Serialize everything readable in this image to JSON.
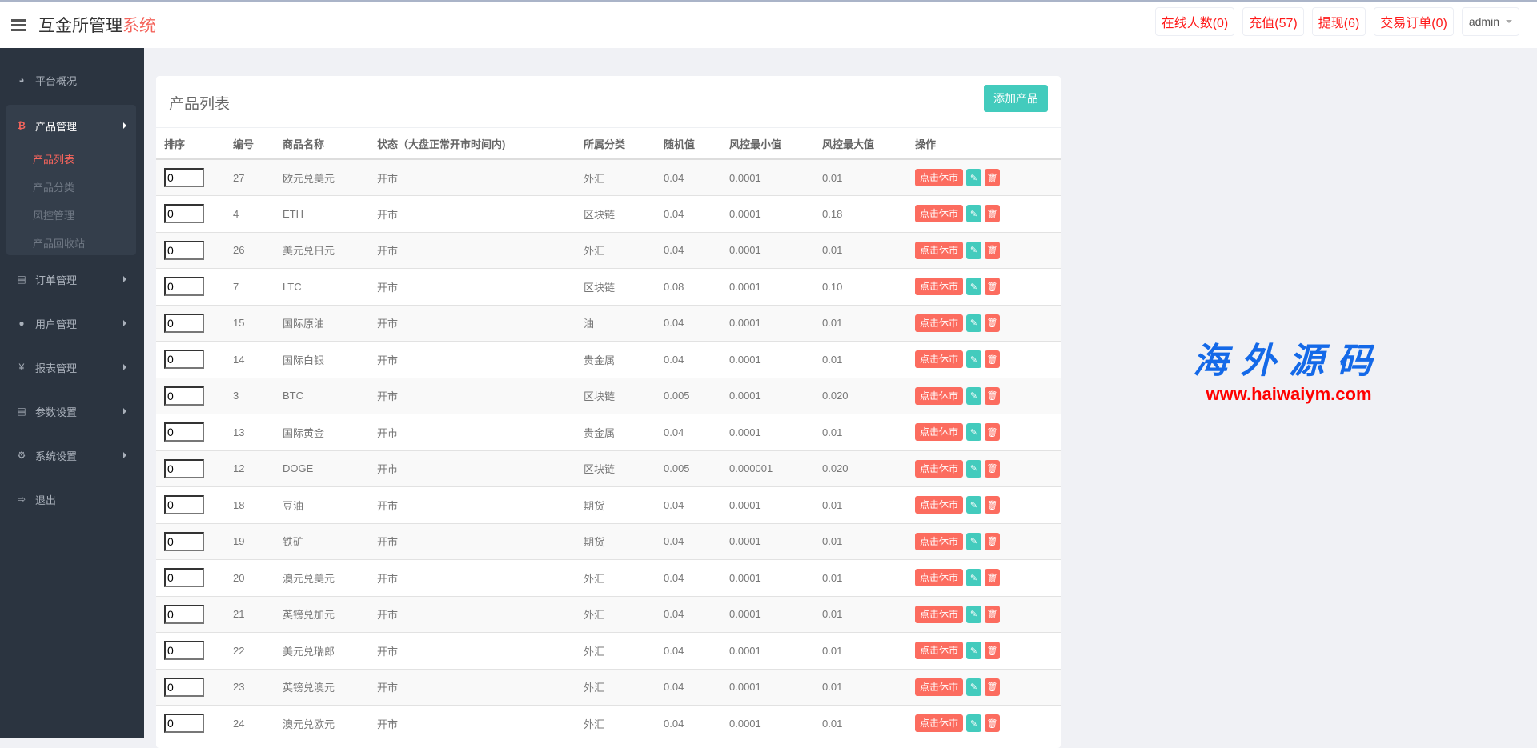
{
  "header": {
    "title_main": "互金所管理",
    "title_accent": "系统",
    "buttons": [
      "在线人数(0)",
      "充值(57)",
      "提现(6)",
      "交易订单(0)"
    ],
    "user": "admin"
  },
  "sidebar": {
    "items": [
      {
        "label": "平台概况",
        "icon": "dashboard-icon"
      },
      {
        "label": "产品管理",
        "icon": "bitcoin-icon",
        "expanded": true,
        "children": [
          "产品列表",
          "产品分类",
          "风控管理",
          "产品回收站"
        ],
        "active_child": "产品列表"
      },
      {
        "label": "订单管理",
        "icon": "files-icon"
      },
      {
        "label": "用户管理",
        "icon": "user-icon"
      },
      {
        "label": "报表管理",
        "icon": "yen-icon"
      },
      {
        "label": "参数设置",
        "icon": "files-icon"
      },
      {
        "label": "系统设置",
        "icon": "gears-icon"
      },
      {
        "label": "退出",
        "icon": "sign-out-icon"
      }
    ]
  },
  "main": {
    "title": "产品列表",
    "add_label": "添加产品",
    "columns": [
      "排序",
      "编号",
      "商品名称",
      "状态（大盘正常开市时间内)",
      "所属分类",
      "随机值",
      "风控最小值",
      "风控最大值",
      "操作"
    ],
    "action_label": "点击休市",
    "rows": [
      [
        "0",
        "27",
        "欧元兑美元",
        "开市",
        "外汇",
        "0.04",
        "0.0001",
        "0.01"
      ],
      [
        "0",
        "4",
        "ETH",
        "开市",
        "区块链",
        "0.04",
        "0.0001",
        "0.18"
      ],
      [
        "0",
        "26",
        "美元兑日元",
        "开市",
        "外汇",
        "0.04",
        "0.0001",
        "0.01"
      ],
      [
        "0",
        "7",
        "LTC",
        "开市",
        "区块链",
        "0.08",
        "0.0001",
        "0.10"
      ],
      [
        "0",
        "15",
        "国际原油",
        "开市",
        "油",
        "0.04",
        "0.0001",
        "0.01"
      ],
      [
        "0",
        "14",
        "国际白银",
        "开市",
        "贵金属",
        "0.04",
        "0.0001",
        "0.01"
      ],
      [
        "0",
        "3",
        "BTC",
        "开市",
        "区块链",
        "0.005",
        "0.0001",
        "0.020"
      ],
      [
        "0",
        "13",
        "国际黄金",
        "开市",
        "贵金属",
        "0.04",
        "0.0001",
        "0.01"
      ],
      [
        "0",
        "12",
        "DOGE",
        "开市",
        "区块链",
        "0.005",
        "0.000001",
        "0.020"
      ],
      [
        "0",
        "18",
        "豆油",
        "开市",
        "期货",
        "0.04",
        "0.0001",
        "0.01"
      ],
      [
        "0",
        "19",
        "铁矿",
        "开市",
        "期货",
        "0.04",
        "0.0001",
        "0.01"
      ],
      [
        "0",
        "20",
        "澳元兑美元",
        "开市",
        "外汇",
        "0.04",
        "0.0001",
        "0.01"
      ],
      [
        "0",
        "21",
        "英镑兑加元",
        "开市",
        "外汇",
        "0.04",
        "0.0001",
        "0.01"
      ],
      [
        "0",
        "22",
        "美元兑瑞郎",
        "开市",
        "外汇",
        "0.04",
        "0.0001",
        "0.01"
      ],
      [
        "0",
        "23",
        "英镑兑澳元",
        "开市",
        "外汇",
        "0.04",
        "0.0001",
        "0.01"
      ],
      [
        "0",
        "24",
        "澳元兑欧元",
        "开市",
        "外汇",
        "0.04",
        "0.0001",
        "0.01"
      ]
    ]
  },
  "watermark": {
    "cn": "海外源码",
    "url": "www.haiwaiym.com"
  },
  "colors": {
    "accent": "#f4645c",
    "teal": "#43cbbd",
    "danger": "#fc6c5f",
    "sidebar": "#2b3440"
  }
}
